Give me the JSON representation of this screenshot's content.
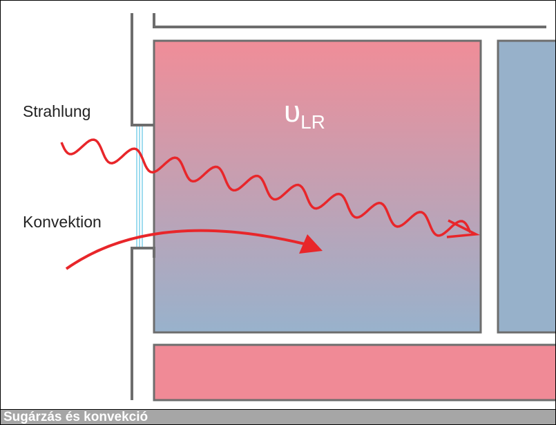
{
  "labels": {
    "radiation": "Strahlung",
    "convection": "Konvektion",
    "symbol": "υ",
    "subscript": "LR"
  },
  "caption": "Sugárzás és konvekció"
}
